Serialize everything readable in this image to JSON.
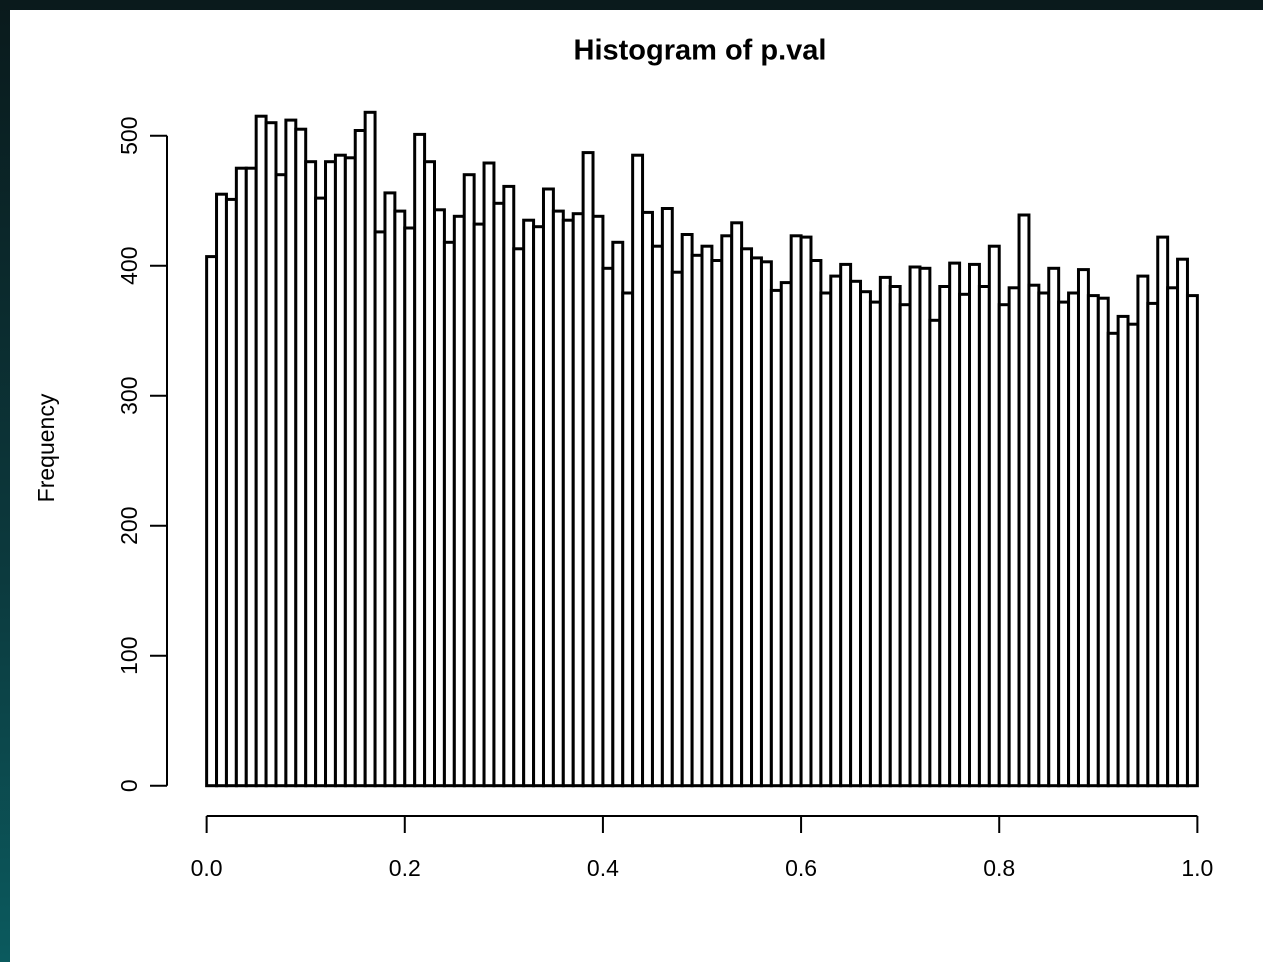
{
  "chart_data": {
    "type": "histogram",
    "title": "Histogram of p.val",
    "ylabel": "Frequency",
    "bins": [
      0,
      0.01,
      0.02,
      0.03,
      0.04,
      0.05,
      0.06,
      0.07,
      0.08,
      0.09,
      0.1,
      0.11,
      0.12,
      0.13,
      0.14,
      0.15,
      0.16,
      0.17,
      0.18,
      0.19,
      0.2,
      0.21,
      0.22,
      0.23,
      0.24,
      0.25,
      0.26,
      0.27,
      0.28,
      0.29,
      0.3,
      0.31,
      0.32,
      0.33,
      0.34,
      0.35,
      0.36,
      0.37,
      0.38,
      0.39,
      0.4,
      0.41,
      0.42,
      0.43,
      0.44,
      0.45,
      0.46,
      0.47,
      0.48,
      0.49,
      0.5,
      0.51,
      0.52,
      0.53,
      0.54,
      0.55,
      0.56,
      0.57,
      0.58,
      0.59,
      0.6,
      0.61,
      0.62,
      0.63,
      0.64,
      0.65,
      0.66,
      0.67,
      0.68,
      0.69,
      0.7,
      0.71,
      0.72,
      0.73,
      0.74,
      0.75,
      0.76,
      0.77,
      0.78,
      0.79,
      0.8,
      0.81,
      0.82,
      0.83,
      0.84,
      0.85,
      0.86,
      0.87,
      0.88,
      0.89,
      0.9,
      0.91,
      0.92,
      0.93,
      0.94,
      0.95,
      0.96,
      0.97,
      0.98,
      0.99,
      1
    ],
    "values": [
      407,
      455,
      451,
      475,
      475,
      515,
      510,
      470,
      512,
      505,
      480,
      452,
      480,
      485,
      483,
      504,
      518,
      426,
      456,
      442,
      429,
      501,
      480,
      443,
      418,
      438,
      470,
      432,
      479,
      448,
      461,
      413,
      435,
      430,
      459,
      442,
      435,
      440,
      487,
      438,
      398,
      418,
      379,
      485,
      441,
      415,
      444,
      395,
      424,
      408,
      415,
      404,
      423,
      433,
      413,
      406,
      403,
      381,
      387,
      423,
      422,
      404,
      379,
      392,
      401,
      388,
      380,
      372,
      391,
      384,
      370,
      399,
      398,
      358,
      384,
      402,
      378,
      401,
      384,
      415,
      370,
      383,
      439,
      385,
      379,
      398,
      372,
      379,
      397,
      377,
      375,
      348,
      361,
      355,
      392,
      371,
      422,
      383,
      405,
      377
    ],
    "fill": "#ffffff",
    "edgecolor": "#000000",
    "xlim": [
      -0.04,
      1.04
    ],
    "ylim": [
      -21,
      539
    ],
    "xticks": [
      {
        "value": 0,
        "label": "0.0"
      },
      0.2,
      0.4,
      0.6,
      0.8,
      {
        "value": 1,
        "label": "1.0"
      }
    ],
    "yticks": [
      0,
      100,
      200,
      300,
      400,
      500
    ]
  }
}
